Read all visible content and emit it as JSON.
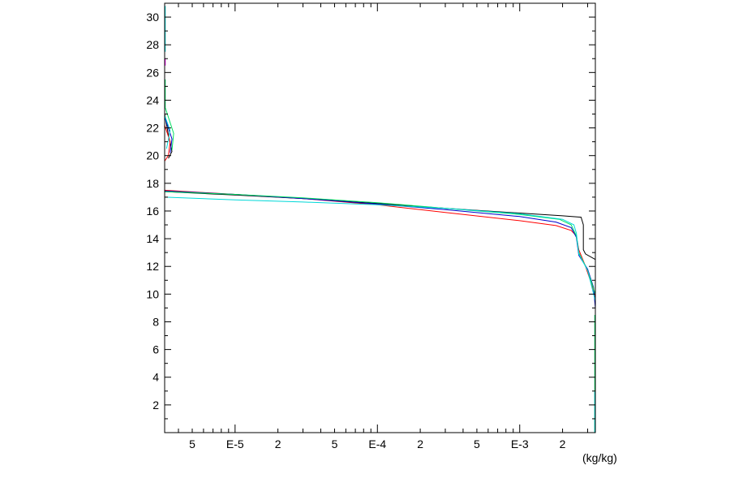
{
  "chart_data": {
    "type": "line",
    "title": "",
    "xlabel": "",
    "ylabel": "",
    "x_unit": "(kg/kg)",
    "x_scale": "log",
    "xlim": [
      3.2e-06,
      0.0034
    ],
    "ylim": [
      0,
      31
    ],
    "grid": false,
    "x_ticks": [
      {
        "value": 5e-06,
        "label": "5"
      },
      {
        "value": 1e-05,
        "label": "E-5"
      },
      {
        "value": 2e-05,
        "label": "2"
      },
      {
        "value": 5e-05,
        "label": "5"
      },
      {
        "value": 0.0001,
        "label": "E-4"
      },
      {
        "value": 0.0002,
        "label": "2"
      },
      {
        "value": 0.0005,
        "label": "5"
      },
      {
        "value": 0.001,
        "label": "E-3"
      },
      {
        "value": 0.002,
        "label": "2"
      }
    ],
    "y_ticks": [
      {
        "value": 2,
        "label": "2"
      },
      {
        "value": 4,
        "label": "4"
      },
      {
        "value": 6,
        "label": "6"
      },
      {
        "value": 8,
        "label": "8"
      },
      {
        "value": 10,
        "label": "10"
      },
      {
        "value": 12,
        "label": "12"
      },
      {
        "value": 14,
        "label": "14"
      },
      {
        "value": 16,
        "label": "16"
      },
      {
        "value": 18,
        "label": "18"
      },
      {
        "value": 20,
        "label": "20"
      },
      {
        "value": 22,
        "label": "22"
      },
      {
        "value": 24,
        "label": "24"
      },
      {
        "value": 26,
        "label": "26"
      },
      {
        "value": 28,
        "label": "28"
      },
      {
        "value": 30,
        "label": "30"
      }
    ],
    "series": [
      {
        "color": "#000000",
        "points": [
          [
            3.2e-06,
            17.4
          ],
          [
            1e-05,
            17.15
          ],
          [
            3e-05,
            16.9
          ],
          [
            0.0001,
            16.55
          ],
          [
            0.0003,
            16.2
          ],
          [
            0.001,
            15.85
          ],
          [
            0.002,
            15.65
          ],
          [
            0.0027,
            15.55
          ],
          [
            0.0028,
            15.0
          ],
          [
            0.0028,
            13.2
          ],
          [
            0.0029,
            12.9
          ],
          [
            0.0034,
            12.5
          ]
        ]
      },
      {
        "color": "#ff0000",
        "points": [
          [
            3.2e-06,
            17.5
          ],
          [
            1e-05,
            17.2
          ],
          [
            3e-05,
            16.9
          ],
          [
            0.0001,
            16.45
          ],
          [
            0.0003,
            15.9
          ],
          [
            0.001,
            15.3
          ],
          [
            0.0018,
            14.95
          ],
          [
            0.0023,
            14.6
          ],
          [
            0.0025,
            14.2
          ],
          [
            0.0026,
            13.2
          ],
          [
            0.0029,
            12.0
          ],
          [
            0.0033,
            10.3
          ],
          [
            0.0034,
            9.6
          ]
        ]
      },
      {
        "color": "#0000cd",
        "points": [
          [
            3.2e-06,
            17.45
          ],
          [
            1e-05,
            17.2
          ],
          [
            3e-05,
            16.9
          ],
          [
            0.0001,
            16.5
          ],
          [
            0.0003,
            16.1
          ],
          [
            0.001,
            15.6
          ],
          [
            0.0018,
            15.2
          ],
          [
            0.0023,
            14.8
          ],
          [
            0.0025,
            14.1
          ],
          [
            0.0026,
            12.8
          ],
          [
            0.003,
            11.8
          ],
          [
            0.0033,
            10.5
          ],
          [
            0.0034,
            9.0
          ]
        ]
      },
      {
        "color": "#00e060",
        "points": [
          [
            3.2e-06,
            17.4
          ],
          [
            1e-05,
            17.2
          ],
          [
            3e-05,
            16.95
          ],
          [
            0.0001,
            16.6
          ],
          [
            0.0003,
            16.2
          ],
          [
            0.001,
            15.75
          ],
          [
            0.0019,
            15.4
          ],
          [
            0.0023,
            15.0
          ],
          [
            0.0025,
            14.2
          ],
          [
            0.0026,
            13.0
          ],
          [
            0.003,
            11.7
          ],
          [
            0.0034,
            10.0
          ]
        ]
      },
      {
        "color": "#00d8d8",
        "points": [
          [
            3.2e-06,
            17.0
          ],
          [
            1e-05,
            16.8
          ],
          [
            3e-05,
            16.65
          ],
          [
            0.0001,
            16.45
          ],
          [
            0.0003,
            16.2
          ],
          [
            0.001,
            15.8
          ],
          [
            0.002,
            15.4
          ],
          [
            0.0024,
            15.0
          ],
          [
            0.0025,
            14.4
          ],
          [
            0.0026,
            12.9
          ],
          [
            0.003,
            11.7
          ],
          [
            0.0034,
            9.5
          ]
        ]
      }
    ],
    "upper_segments": [
      {
        "color": "#000000",
        "points": [
          [
            3.2e-06,
            23.0
          ],
          [
            3.4e-06,
            21.5
          ],
          [
            3.6e-06,
            20.3
          ],
          [
            3.4e-06,
            19.8
          ]
        ]
      },
      {
        "color": "#ff0000",
        "points": [
          [
            3.2e-06,
            22.2
          ],
          [
            3.5e-06,
            21.0
          ],
          [
            3.4e-06,
            20.0
          ],
          [
            3.2e-06,
            19.6
          ]
        ]
      },
      {
        "color": "#0000cd",
        "points": [
          [
            3.2e-06,
            22.8
          ],
          [
            3.6e-06,
            21.2
          ],
          [
            3.5e-06,
            20.2
          ]
        ]
      },
      {
        "color": "#00e060",
        "points": [
          [
            3.2e-06,
            23.6
          ],
          [
            3.7e-06,
            21.6
          ],
          [
            3.6e-06,
            20.4
          ]
        ]
      },
      {
        "color": "#00d8d8",
        "points": [
          [
            3.2e-06,
            22.9
          ],
          [
            3.5e-06,
            21.8
          ],
          [
            3.3e-06,
            20.5
          ]
        ]
      }
    ],
    "edge_segments": [
      {
        "color": "#00d8d8",
        "axis": "left",
        "y": [
          27.5,
          30.8
        ]
      },
      {
        "color": "#00e060",
        "axis": "left",
        "y": [
          23.5,
          25.5
        ]
      },
      {
        "color": "#ff00ff",
        "axis": "left",
        "y": [
          26.5,
          27.0
        ]
      },
      {
        "color": "#00e060",
        "axis": "right",
        "y": [
          0,
          8.5
        ]
      },
      {
        "color": "#00d8d8",
        "axis": "right",
        "y": [
          0,
          3.0
        ]
      }
    ]
  }
}
